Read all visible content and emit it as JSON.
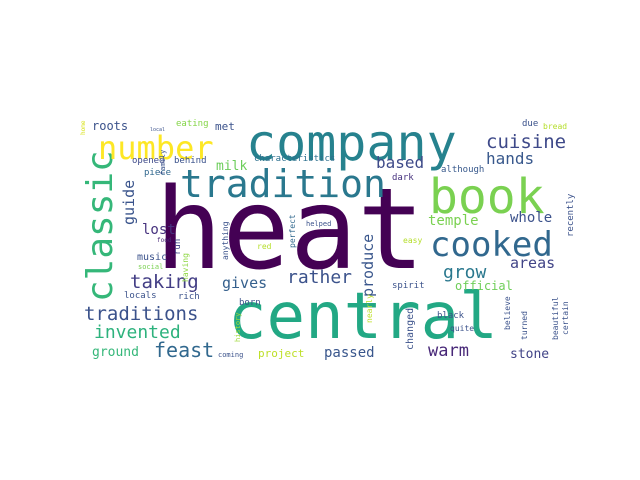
{
  "wordcloud": {
    "palette": "viridis",
    "words": [
      {
        "text": "heat",
        "color": "#440154"
      },
      {
        "text": "central",
        "color": "#22a884"
      },
      {
        "text": "company",
        "color": "#26828e"
      },
      {
        "text": "book",
        "color": "#7ad151"
      },
      {
        "text": "tradition",
        "color": "#2a788e"
      },
      {
        "text": "cooked",
        "color": "#31688e"
      },
      {
        "text": "classic",
        "color": "#35b779"
      },
      {
        "text": "number",
        "color": "#fde725"
      },
      {
        "text": "traditions",
        "color": "#3b528b"
      },
      {
        "text": "taking",
        "color": "#433e85"
      },
      {
        "text": "invented",
        "color": "#2db27d"
      },
      {
        "text": "feast",
        "color": "#31688e"
      },
      {
        "text": "grow",
        "color": "#2a788e"
      },
      {
        "text": "warm",
        "color": "#482878"
      },
      {
        "text": "rather",
        "color": "#3b528b"
      },
      {
        "text": "cuisine",
        "color": "#3e4989"
      },
      {
        "text": "hands",
        "color": "#38588c"
      },
      {
        "text": "based",
        "color": "#3e4a89"
      },
      {
        "text": "guide",
        "color": "#3a548c"
      },
      {
        "text": "gives",
        "color": "#35608d"
      },
      {
        "text": "produce",
        "color": "#39568c"
      },
      {
        "text": "areas",
        "color": "#414487"
      },
      {
        "text": "temple",
        "color": "#7ad151"
      },
      {
        "text": "whole",
        "color": "#3b518b"
      },
      {
        "text": "lost",
        "color": "#46327e"
      },
      {
        "text": "milk",
        "color": "#6ccd5a"
      },
      {
        "text": "passed",
        "color": "#39568c"
      },
      {
        "text": "ground",
        "color": "#35b779"
      },
      {
        "text": "stone",
        "color": "#414487"
      },
      {
        "text": "project",
        "color": "#bddf26"
      },
      {
        "text": "official",
        "color": "#6ece58"
      },
      {
        "text": "roots",
        "color": "#3b528b"
      },
      {
        "text": "met",
        "color": "#3b528b"
      },
      {
        "text": "eating",
        "color": "#86d549"
      },
      {
        "text": "opened",
        "color": "#3e4a89"
      },
      {
        "text": "behind",
        "color": "#3b528b"
      },
      {
        "text": "characteristics",
        "color": "#2d708e"
      },
      {
        "text": "piece",
        "color": "#31688e"
      },
      {
        "text": "dark",
        "color": "#46327e"
      },
      {
        "text": "although",
        "color": "#38598c"
      },
      {
        "text": "due",
        "color": "#3b528b"
      },
      {
        "text": "bread",
        "color": "#b5de2b"
      },
      {
        "text": "recently",
        "color": "#3b528b"
      },
      {
        "text": "music",
        "color": "#3b528b"
      },
      {
        "text": "run",
        "color": "#414487"
      },
      {
        "text": "anything",
        "color": "#3b528b"
      },
      {
        "text": "perfect",
        "color": "#31688e"
      },
      {
        "text": "helped",
        "color": "#3b528b"
      },
      {
        "text": "easy",
        "color": "#b5de2b"
      },
      {
        "text": "red",
        "color": "#b5de2b"
      },
      {
        "text": "having",
        "color": "#8fd744"
      },
      {
        "text": "food",
        "color": "#482878"
      },
      {
        "text": "social",
        "color": "#7ad151"
      },
      {
        "text": "locals",
        "color": "#3b528b"
      },
      {
        "text": "rich",
        "color": "#3b528b"
      },
      {
        "text": "born",
        "color": "#3b528b"
      },
      {
        "text": "spirit",
        "color": "#3b528b"
      },
      {
        "text": "history",
        "color": "#a0da39"
      },
      {
        "text": "coming",
        "color": "#3b528b"
      },
      {
        "text": "changed",
        "color": "#3b528b"
      },
      {
        "text": "nearly",
        "color": "#bddf26"
      },
      {
        "text": "black",
        "color": "#3b528b"
      },
      {
        "text": "quite",
        "color": "#3b528b"
      },
      {
        "text": "turned",
        "color": "#3b528b"
      },
      {
        "text": "believe",
        "color": "#3b528b"
      },
      {
        "text": "beautiful",
        "color": "#3b528b"
      },
      {
        "text": "certain",
        "color": "#3b528b"
      },
      {
        "text": "family",
        "color": "#3b528b"
      },
      {
        "text": "local",
        "color": "#3b528b"
      },
      {
        "text": "home",
        "color": "#d8e219"
      }
    ]
  }
}
